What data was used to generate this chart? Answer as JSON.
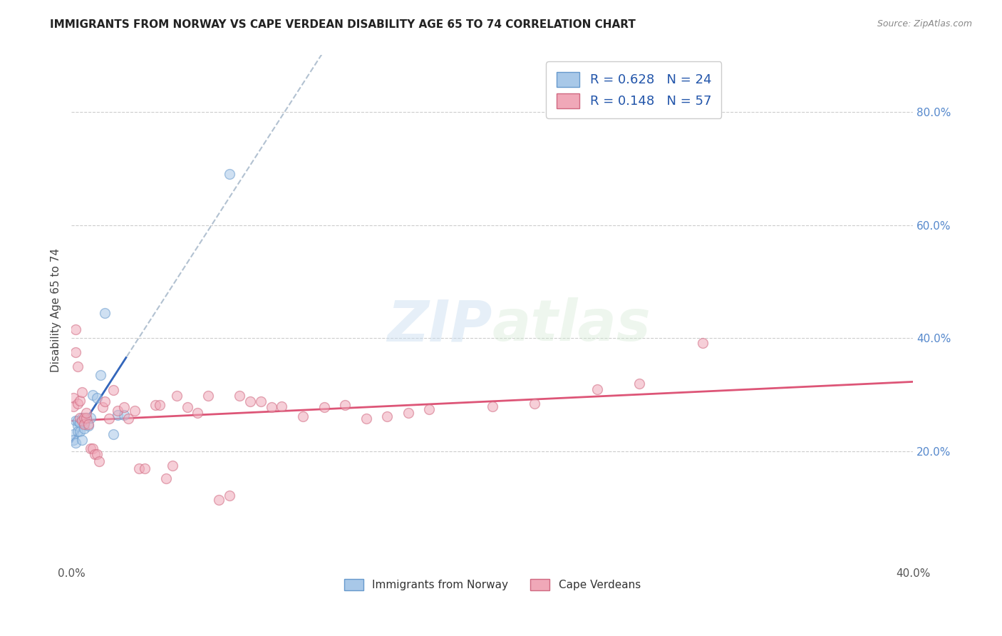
{
  "title": "IMMIGRANTS FROM NORWAY VS CAPE VERDEAN DISABILITY AGE 65 TO 74 CORRELATION CHART",
  "source": "Source: ZipAtlas.com",
  "ylabel": "Disability Age 65 to 74",
  "xlim": [
    0.0,
    0.4
  ],
  "ylim": [
    0.0,
    0.9
  ],
  "y_ticks_right": [
    0.2,
    0.4,
    0.6,
    0.8
  ],
  "y_tick_labels_right": [
    "20.0%",
    "40.0%",
    "60.0%",
    "80.0%"
  ],
  "norway_color": "#a8c8e8",
  "norway_edge_color": "#6699cc",
  "cape_verde_color": "#f0a8b8",
  "cape_verde_edge_color": "#d06880",
  "norway_R": 0.628,
  "norway_N": 24,
  "cape_verde_R": 0.148,
  "cape_verde_N": 57,
  "norway_line_color": "#3366bb",
  "cape_verde_line_color": "#dd5577",
  "trend_ext_color": "#aabbcc",
  "watermark_zip": "ZIP",
  "watermark_atlas": "atlas",
  "norway_x": [
    0.001,
    0.001,
    0.002,
    0.002,
    0.003,
    0.003,
    0.003,
    0.004,
    0.004,
    0.005,
    0.005,
    0.006,
    0.006,
    0.007,
    0.008,
    0.009,
    0.01,
    0.012,
    0.014,
    0.016,
    0.02,
    0.022,
    0.025,
    0.075
  ],
  "norway_y": [
    0.23,
    0.22,
    0.255,
    0.215,
    0.245,
    0.235,
    0.255,
    0.25,
    0.235,
    0.22,
    0.26,
    0.25,
    0.24,
    0.26,
    0.245,
    0.26,
    0.3,
    0.295,
    0.335,
    0.445,
    0.23,
    0.265,
    0.265,
    0.69
  ],
  "cape_verde_x": [
    0.001,
    0.001,
    0.002,
    0.002,
    0.003,
    0.003,
    0.004,
    0.004,
    0.005,
    0.005,
    0.006,
    0.006,
    0.007,
    0.007,
    0.008,
    0.009,
    0.01,
    0.011,
    0.012,
    0.013,
    0.015,
    0.016,
    0.018,
    0.02,
    0.022,
    0.025,
    0.027,
    0.03,
    0.032,
    0.035,
    0.04,
    0.042,
    0.045,
    0.048,
    0.05,
    0.055,
    0.06,
    0.065,
    0.07,
    0.075,
    0.08,
    0.085,
    0.09,
    0.095,
    0.1,
    0.11,
    0.12,
    0.13,
    0.14,
    0.15,
    0.16,
    0.17,
    0.2,
    0.22,
    0.25,
    0.27,
    0.3
  ],
  "cape_verde_y": [
    0.295,
    0.28,
    0.415,
    0.375,
    0.35,
    0.285,
    0.29,
    0.26,
    0.305,
    0.255,
    0.26,
    0.248,
    0.26,
    0.268,
    0.248,
    0.205,
    0.205,
    0.195,
    0.195,
    0.182,
    0.278,
    0.288,
    0.258,
    0.308,
    0.272,
    0.278,
    0.258,
    0.272,
    0.17,
    0.17,
    0.282,
    0.282,
    0.152,
    0.175,
    0.298,
    0.278,
    0.268,
    0.298,
    0.115,
    0.122,
    0.298,
    0.288,
    0.288,
    0.278,
    0.28,
    0.262,
    0.278,
    0.282,
    0.258,
    0.262,
    0.268,
    0.275,
    0.28,
    0.285,
    0.31,
    0.32,
    0.392
  ],
  "marker_size": 100,
  "alpha": 0.55
}
